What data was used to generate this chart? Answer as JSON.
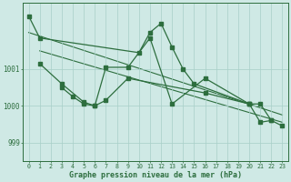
{
  "background_color": "#cfe9e5",
  "plot_bg_color": "#cfe9e5",
  "grid_color": "#a8cfc8",
  "line_color": "#2d6e3e",
  "title": "Graphe pression niveau de la mer (hPa)",
  "ylabel_values": [
    999,
    1000,
    1001
  ],
  "ylim": [
    998.5,
    1002.8
  ],
  "xlim": [
    -0.5,
    23.5
  ],
  "xticks": [
    0,
    1,
    2,
    3,
    4,
    5,
    6,
    7,
    8,
    9,
    10,
    11,
    12,
    13,
    14,
    15,
    16,
    17,
    18,
    19,
    20,
    21,
    22,
    23
  ],
  "line1_x": [
    0,
    1,
    10,
    11,
    12,
    13,
    14,
    15,
    20
  ],
  "line1_y": [
    1002.45,
    1001.85,
    1001.45,
    1002.0,
    1002.25,
    1001.6,
    1001.0,
    1000.6,
    1000.05
  ],
  "line2_x": [
    1,
    3,
    5,
    6,
    7,
    9,
    16,
    20,
    21,
    22,
    23
  ],
  "line2_y": [
    1001.15,
    1000.6,
    1000.1,
    1000.0,
    1000.15,
    1000.75,
    1000.35,
    1000.05,
    999.55,
    999.6,
    999.45
  ],
  "line3_x": [
    3,
    4,
    5,
    6,
    7,
    9,
    11,
    13,
    16,
    20,
    21,
    22
  ],
  "line3_y": [
    1000.5,
    1000.25,
    1000.05,
    1000.0,
    1001.05,
    1001.05,
    1001.85,
    1000.05,
    1000.75,
    1000.05,
    1000.05,
    999.6
  ],
  "trend1_x": [
    0,
    23
  ],
  "trend1_y": [
    1002.0,
    999.75
  ],
  "trend2_x": [
    1,
    23
  ],
  "trend2_y": [
    1001.5,
    999.55
  ]
}
